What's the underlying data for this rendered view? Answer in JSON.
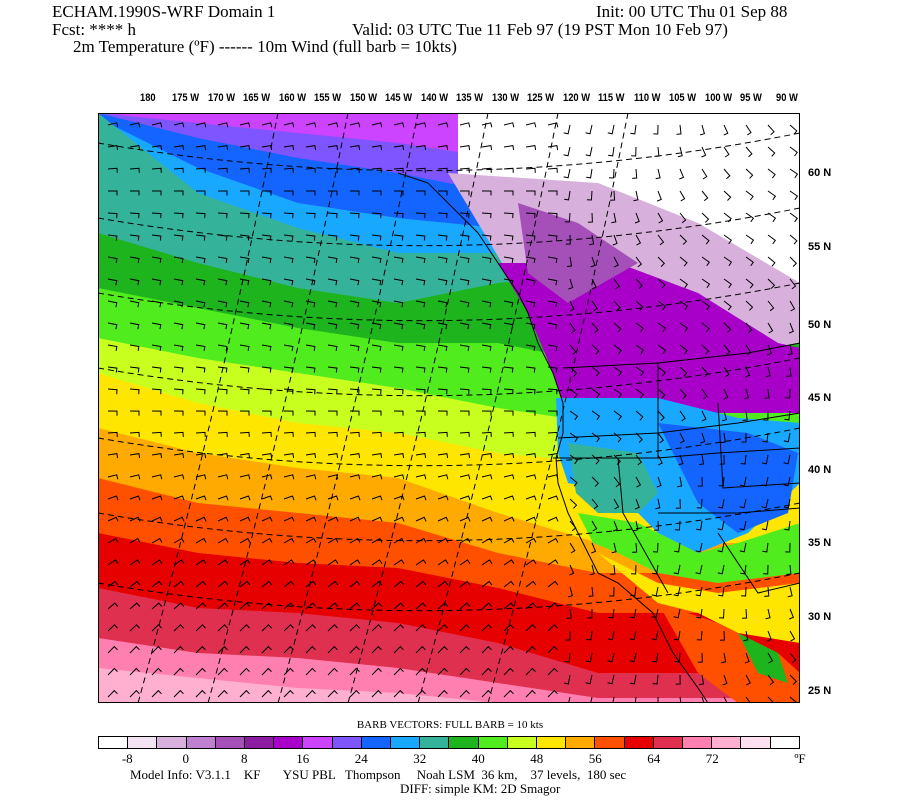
{
  "header": {
    "model_title": "ECHAM.1990S-WRF Domain 1",
    "init": "Init: 00 UTC Thu 01 Sep 88",
    "fcst": "Fcst: **** h",
    "valid": "Valid: 03 UTC Tue 11 Feb 97 (19 PST Mon 10 Feb 97)",
    "fields": "2m Temperature (ºF) ------ 10m Wind (full barb = 10kts)"
  },
  "longitude_labels": [
    "180",
    "175 W",
    "170 W",
    "165 W",
    "160 W",
    "155 W",
    "150 W",
    "145 W",
    "140 W",
    "135 W",
    "130 W",
    "125 W",
    "120 W",
    "115 W",
    "110 W",
    "105 W",
    "100 W",
    "95 W",
    "90 W"
  ],
  "latitude_labels": [
    "60 N",
    "55 N",
    "50 N",
    "45 N",
    "40 N",
    "35 N",
    "30 N",
    "25 N"
  ],
  "legend": {
    "barb_title": "BARB VECTORS:  FULL BARB = 10 kts",
    "colors": [
      "#ffffff",
      "#f2e2f2",
      "#d8b0dc",
      "#c080d0",
      "#a450b8",
      "#8c1ca0",
      "#a800c8",
      "#cc44ff",
      "#7f55ff",
      "#1464ff",
      "#19a8ff",
      "#35b39a",
      "#1eb41e",
      "#50ec1e",
      "#c8ff1e",
      "#ffe600",
      "#ffaa00",
      "#ff5000",
      "#e60000",
      "#e03050",
      "#ff80b0",
      "#ffb0d0",
      "#ffe0f0",
      "#ffffff"
    ],
    "tick_labels": [
      "-8",
      "0",
      "8",
      "16",
      "24",
      "32",
      "40",
      "48",
      "56",
      "64",
      "72"
    ],
    "unit": "ºF"
  },
  "footer": {
    "model_info": "Model Info: V3.1.1    KF       YSU PBL   Thompson     Noah LSM  36 km,    37 levels,  180 sec",
    "diff": "DIFF: simple KM: 2D Smagor"
  }
}
